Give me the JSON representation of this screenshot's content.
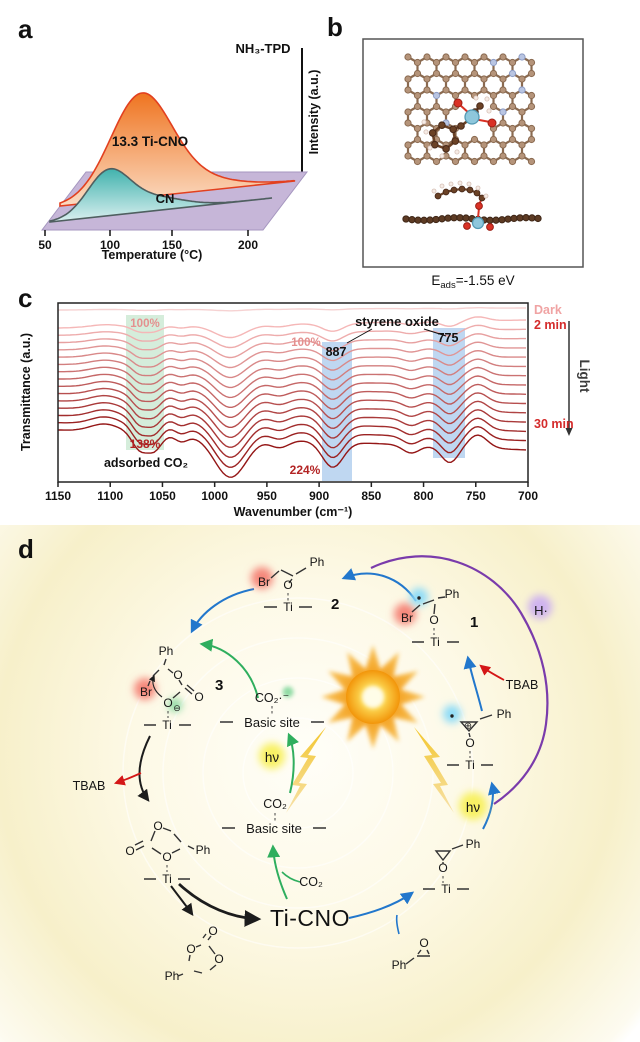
{
  "panels": {
    "a": "a",
    "b": "b",
    "c": "c",
    "d": "d"
  },
  "panel_a": {
    "title": "NH₃-TPD",
    "ylabel": "Intensity (a.u.)",
    "xlabel": "Temperature (°C)",
    "xticks": [
      "50",
      "100",
      "150",
      "200"
    ],
    "series1_label": "13.3 Ti-CNO",
    "series2_label": "CN"
  },
  "panel_b": {
    "eads_e": "E",
    "eads_sub": "ads",
    "eads_rest": "=-1.55 eV"
  },
  "panel_c": {
    "ylabel": "Transmittance (a.u.)",
    "xlabel": "Wavenumber (cm⁻¹)",
    "xticks": [
      "1150",
      "1100",
      "1050",
      "1000",
      "950",
      "900",
      "850",
      "800",
      "750",
      "700"
    ],
    "pct100_left": "100%",
    "pct138": "138%",
    "adsorbed_co2": "adsorbed CO₂",
    "pct100_right": "100%",
    "pct224": "224%",
    "styrene_oxide": "styrene oxide",
    "band887": "887",
    "band775": "775",
    "dark": "Dark",
    "min2": "2 min",
    "light": "Light",
    "min30": "30 min"
  },
  "panel_d": {
    "labels": {
      "ph": "Ph",
      "br": "Br",
      "o": "O",
      "ti": "Ti",
      "ominus": "⊖",
      "oplus": "⊕",
      "n1": "1",
      "n2": "2",
      "n3": "3",
      "h_radical": "H·",
      "tbab": "TBAB",
      "hnu": "hν",
      "co2_radical": "CO₂·⁻",
      "co2": "CO₂",
      "basic_site": "Basic site",
      "ti_cno": "Ti-CNO"
    }
  },
  "chart_data": [
    {
      "panel": "a",
      "type": "area",
      "title": "NH₃-TPD",
      "xlabel": "Temperature (°C)",
      "ylabel": "Intensity (a.u.)",
      "xticks": [
        50,
        100,
        150,
        200
      ],
      "x_range": [
        50,
        220
      ],
      "style": "3d-offset stacked area, rear series behind front series",
      "series": [
        {
          "name": "13.3 Ti-CNO",
          "peak_temperature_c": 125,
          "relative_peak_intensity": 1.0,
          "color": "#ef7420"
        },
        {
          "name": "CN",
          "peak_temperature_c": 100,
          "relative_peak_intensity": 0.42,
          "color": "#41b2ad"
        }
      ]
    },
    {
      "panel": "c",
      "type": "line",
      "xlabel": "Wavenumber (cm⁻¹)",
      "ylabel": "Transmittance (a.u.)",
      "x_range_cm1": [
        1150,
        700
      ],
      "x_axis_reversed": true,
      "n_spectra": 16,
      "spectra_sequence": {
        "first": "Dark",
        "second": "2 min",
        "last": "30 min",
        "irradiation_label": "Light"
      },
      "bands_cm1": [
        1105,
        1065,
        1032,
        985,
        938,
        887,
        812,
        775,
        748
      ],
      "highlighted": {
        "adsorbed_CO2_band": 1065,
        "styrene_oxide_bands": [
          887,
          775
        ]
      },
      "intensity_annotations": {
        "band_1065": "100% → 138%",
        "band_887_region": "100% → 224%"
      }
    }
  ],
  "render": {
    "panel_a_curves": [
      {
        "name": "13.3 Ti-CNO",
        "baseline": [
          [
            60,
            206
          ],
          [
            295,
            181
          ]
        ],
        "peaks": [
          [
            140,
            95,
            30
          ],
          [
            182,
            15,
            42
          ]
        ],
        "stroke": "#e2401f",
        "fill_top": "#ef7420",
        "fill_bottom": "#fbdcc4"
      },
      {
        "name": "CN",
        "baseline": [
          [
            50,
            222
          ],
          [
            272,
            198
          ]
        ],
        "peaks": [
          [
            108,
            42,
            21
          ],
          [
            152,
            13,
            30
          ]
        ],
        "stroke": "#4f5f60",
        "fill_top": "#41b2ad",
        "fill_bottom": "#dbf0f0"
      }
    ],
    "panel_c_lines": {
      "n": 15,
      "features": [
        [
          1105,
          -5,
          14
        ],
        [
          1072,
          10,
          7
        ],
        [
          1058,
          10,
          7
        ],
        [
          1032,
          4,
          6
        ],
        [
          985,
          25,
          15
        ],
        [
          938,
          5,
          9
        ],
        [
          887,
          16,
          10
        ],
        [
          812,
          5,
          8
        ],
        [
          775,
          10,
          8
        ],
        [
          748,
          -8,
          9
        ]
      ],
      "amp_from": 0.5,
      "amp_to": 1.6,
      "y_left": [
        43,
        145
      ],
      "y_right": [
        35,
        165
      ],
      "color_from": [
        245,
        183,
        183
      ],
      "color_to": [
        148,
        22,
        22
      ],
      "dark_line": {
        "y": 25,
        "amp": 0.06,
        "color": "#f6d2d2"
      }
    }
  }
}
